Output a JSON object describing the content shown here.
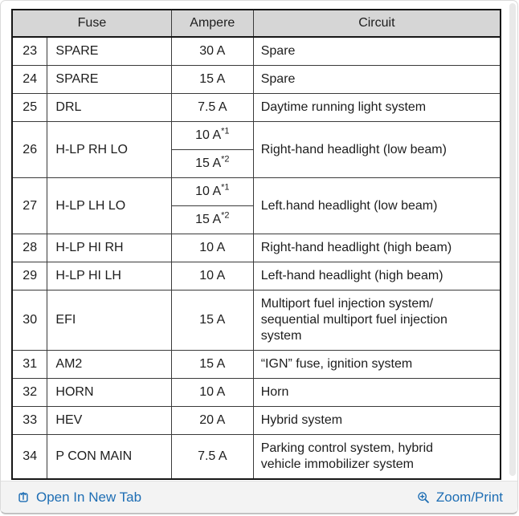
{
  "table": {
    "headers": [
      {
        "label": "Fuse"
      },
      {
        "label": "Ampere"
      },
      {
        "label": "Circuit"
      }
    ],
    "rows": [
      {
        "num": "23",
        "name": "SPARE",
        "ampere": "30 A",
        "circuit": "Spare"
      },
      {
        "num": "24",
        "name": "SPARE",
        "ampere": "15 A",
        "circuit": "Spare"
      },
      {
        "num": "25",
        "name": "DRL",
        "ampere": "7.5 A",
        "circuit": "Daytime running light system"
      },
      {
        "num": "26",
        "name": "H-LP RH LO",
        "ampere_split": [
          {
            "value": "10 A",
            "sup": "*1"
          },
          {
            "value": "15 A",
            "sup": "*2"
          }
        ],
        "circuit": "Right-hand headlight (low beam)"
      },
      {
        "num": "27",
        "name": "H-LP LH LO",
        "ampere_split": [
          {
            "value": "10 A",
            "sup": "*1"
          },
          {
            "value": "15 A",
            "sup": "*2"
          }
        ],
        "circuit": "Left.hand headlight (low beam)"
      },
      {
        "num": "28",
        "name": "H-LP HI RH",
        "ampere": "10 A",
        "circuit": "Right-hand headlight (high beam)"
      },
      {
        "num": "29",
        "name": "H-LP HI LH",
        "ampere": "10 A",
        "circuit": "Left-hand headlight (high beam)"
      },
      {
        "num": "30",
        "name": "EFI",
        "ampere": "15 A",
        "circuit": "Multiport fuel injection system/\nsequential multiport fuel injection\nsystem"
      },
      {
        "num": "31",
        "name": "AM2",
        "ampere": "15 A",
        "circuit": "“IGN” fuse, ignition system"
      },
      {
        "num": "32",
        "name": "HORN",
        "ampere": "10 A",
        "circuit": "Horn"
      },
      {
        "num": "33",
        "name": "HEV",
        "ampere": "20 A",
        "circuit": "Hybrid system"
      },
      {
        "num": "34",
        "name": "P CON MAIN",
        "ampere": "7.5 A",
        "circuit": "Parking control system, hybrid\nvehicle immobilizer system"
      }
    ]
  },
  "footer": {
    "open_in_new_tab": "Open In New Tab",
    "zoom_print": "Zoom/Print"
  },
  "colors": {
    "link": "#1e6eb4",
    "header_bg": "#d6d6d6",
    "table_border": "#161616",
    "footer_bg": "#f3f3f3"
  }
}
